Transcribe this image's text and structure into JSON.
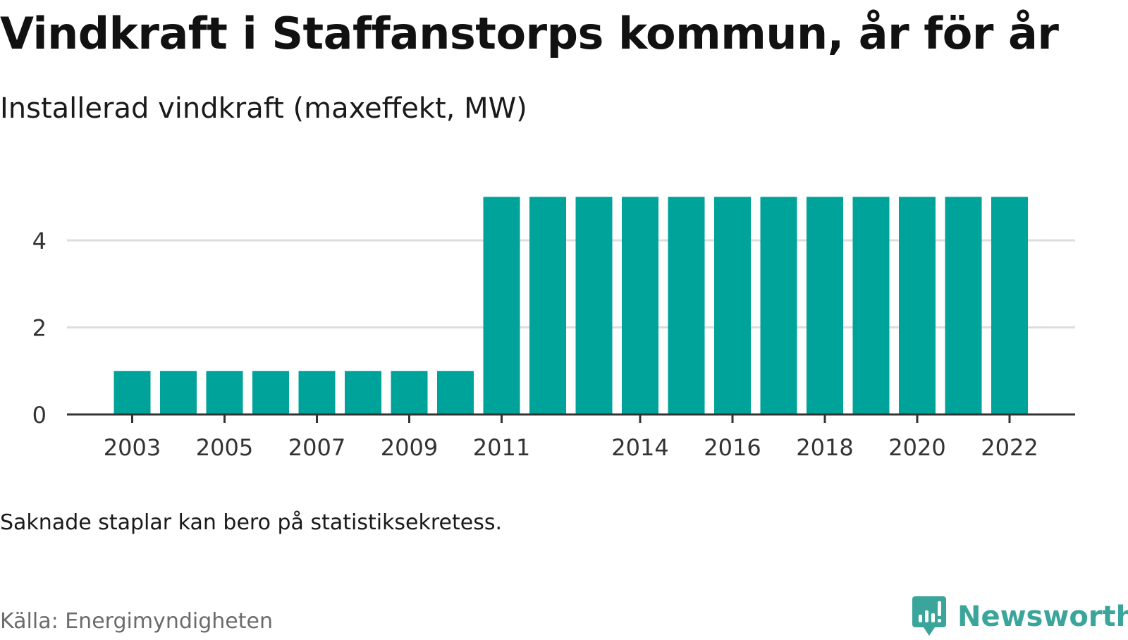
{
  "chart_data": {
    "type": "bar",
    "title": "Vindkraft i Staffanstorps kommun, år för år",
    "subtitle": "Installerad vindkraft (maxeffekt, MW)",
    "xlabel": "",
    "ylabel": "",
    "categories": [
      "2003",
      "2004",
      "2005",
      "2006",
      "2007",
      "2008",
      "2009",
      "2010",
      "2011",
      "2012",
      "2013",
      "2014",
      "2015",
      "2016",
      "2017",
      "2018",
      "2019",
      "2020",
      "2021",
      "2022"
    ],
    "values": [
      1,
      1,
      1,
      1,
      1,
      1,
      1,
      1,
      5,
      5,
      5,
      5,
      5,
      5,
      5,
      5,
      5,
      5,
      5,
      5
    ],
    "x_tick_labels": [
      "2003",
      "2005",
      "2007",
      "2009",
      "2011",
      "2014",
      "2016",
      "2018",
      "2020",
      "2022"
    ],
    "y_ticks": [
      0,
      2,
      4
    ],
    "ylim": [
      0,
      5
    ],
    "grid": true,
    "bar_color": "#00a39a",
    "grid_color": "#dddddd",
    "axis_color": "#333333"
  },
  "note": "Saknade staplar kan bero på statistiksekretess.",
  "source": "Källa: Energimyndigheten",
  "brand": {
    "name": "Newsworthy",
    "icon": "newsworthy-logo-icon",
    "color": "#3aa59a"
  }
}
